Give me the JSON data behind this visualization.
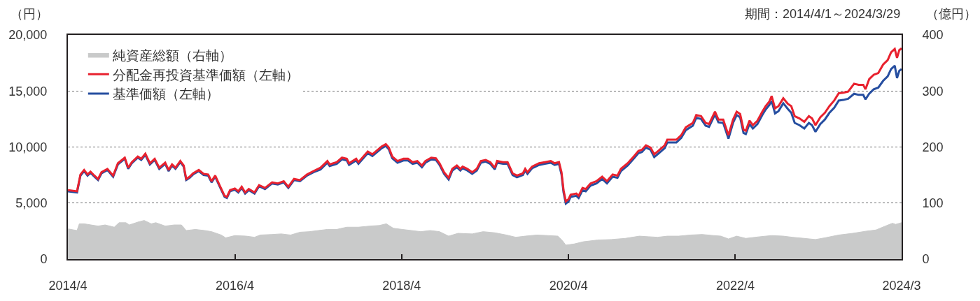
{
  "chart_data": {
    "type": "line",
    "ylabel": "（円）",
    "y2label": "（億円）",
    "annotations": [
      "期間：2014/4/1～2024/3/29"
    ],
    "xlim": [
      "2014-04-01",
      "2024-03-29"
    ],
    "xticks": [
      {
        "value": "2014-04-01",
        "label": "2014/4"
      },
      {
        "value": "2016-04-01",
        "label": "2016/4"
      },
      {
        "value": "2018-04-01",
        "label": "2018/4"
      },
      {
        "value": "2020-04-01",
        "label": "2020/4"
      },
      {
        "value": "2022-04-01",
        "label": "2022/4"
      },
      {
        "value": "2024-03-29",
        "label": "2024/3"
      }
    ],
    "ylim": [
      0,
      20000
    ],
    "yticks": [
      0,
      {
        "value": 5000,
        "label": "5,000"
      },
      {
        "value": 10000,
        "label": "10,000"
      },
      {
        "value": 15000,
        "label": "15,000"
      },
      {
        "value": 20000,
        "label": "20,000"
      }
    ],
    "y2lim": [
      0,
      400
    ],
    "y2ticks": [
      0,
      100,
      200,
      300,
      400
    ],
    "grid": "y",
    "legend": "top left",
    "x": [
      "2014-04-01",
      "2014-05-11",
      "2014-05-26",
      "2014-06-11",
      "2014-06-26",
      "2014-07-09",
      "2014-07-26",
      "2014-08-11",
      "2014-08-26",
      "2014-09-21",
      "2014-10-16",
      "2014-11-06",
      "2014-12-06",
      "2014-12-21",
      "2015-01-06",
      "2015-02-01",
      "2015-02-16",
      "2015-03-06",
      "2015-03-26",
      "2015-04-16",
      "2015-05-06",
      "2015-06-01",
      "2015-06-16",
      "2015-07-01",
      "2015-07-16",
      "2015-08-06",
      "2015-08-21",
      "2015-09-01",
      "2015-09-16",
      "2015-10-01",
      "2015-10-26",
      "2015-11-16",
      "2015-12-06",
      "2015-12-21",
      "2016-01-06",
      "2016-01-26",
      "2016-02-16",
      "2016-02-26",
      "2016-03-11",
      "2016-04-01",
      "2016-04-16",
      "2016-05-01",
      "2016-05-16",
      "2016-06-01",
      "2016-06-26",
      "2016-07-16",
      "2016-08-11",
      "2016-09-11",
      "2016-10-06",
      "2016-11-01",
      "2016-11-21",
      "2016-12-16",
      "2017-01-11",
      "2017-02-11",
      "2017-03-11",
      "2017-04-11",
      "2017-05-11",
      "2017-05-21",
      "2017-06-21",
      "2017-07-14",
      "2017-08-04",
      "2017-08-14",
      "2017-09-14",
      "2017-09-24",
      "2017-11-04",
      "2017-11-24",
      "2017-12-09",
      "2018-01-04",
      "2018-01-22",
      "2018-02-04",
      "2018-02-19",
      "2018-03-14",
      "2018-04-09",
      "2018-04-29",
      "2018-05-19",
      "2018-06-09",
      "2018-06-29",
      "2018-07-14",
      "2018-08-09",
      "2018-08-29",
      "2018-09-14",
      "2018-10-04",
      "2018-10-24",
      "2018-11-09",
      "2018-11-29",
      "2018-12-14",
      "2018-12-24",
      "2019-01-14",
      "2019-02-04",
      "2019-02-24",
      "2019-03-14",
      "2019-04-04",
      "2019-04-24",
      "2019-05-14",
      "2019-05-24",
      "2019-06-19",
      "2019-07-09",
      "2019-07-31",
      "2019-08-19",
      "2019-09-14",
      "2019-09-24",
      "2019-10-04",
      "2019-10-24",
      "2019-11-24",
      "2019-12-19",
      "2020-01-14",
      "2020-01-31",
      "2020-02-19",
      "2020-03-01",
      "2020-03-10",
      "2020-03-20",
      "2020-04-01",
      "2020-04-10",
      "2020-05-05",
      "2020-05-15",
      "2020-06-01",
      "2020-06-15",
      "2020-07-06",
      "2020-08-01",
      "2020-08-26",
      "2020-09-16",
      "2020-10-11",
      "2020-11-01",
      "2020-11-16",
      "2020-12-16",
      "2021-01-11",
      "2021-02-01",
      "2021-02-16",
      "2021-03-06",
      "2021-03-26",
      "2021-04-11",
      "2021-04-26",
      "2021-05-27",
      "2021-06-07",
      "2021-07-17",
      "2021-08-07",
      "2021-08-27",
      "2021-09-27",
      "2021-10-12",
      "2021-11-02",
      "2021-11-22",
      "2021-12-07",
      "2022-01-02",
      "2022-01-17",
      "2022-02-07",
      "2022-03-02",
      "2022-03-22",
      "2022-04-07",
      "2022-04-22",
      "2022-05-07",
      "2022-05-17",
      "2022-06-02",
      "2022-06-17",
      "2022-07-07",
      "2022-07-28",
      "2022-08-12",
      "2022-08-28",
      "2022-09-07",
      "2022-09-22",
      "2022-10-07",
      "2022-10-28",
      "2022-11-17",
      "2022-12-02",
      "2022-12-17",
      "2023-01-07",
      "2023-01-28",
      "2023-02-17",
      "2023-03-03",
      "2023-03-18",
      "2023-04-08",
      "2023-04-28",
      "2023-05-18",
      "2023-06-08",
      "2023-06-28",
      "2023-07-18",
      "2023-08-08",
      "2023-09-03",
      "2023-09-23",
      "2023-10-13",
      "2023-10-23",
      "2023-11-08",
      "2023-11-28",
      "2023-12-18",
      "2024-01-08",
      "2024-01-28",
      "2024-02-12",
      "2024-02-28",
      "2024-03-09",
      "2024-03-19",
      "2024-03-29"
    ],
    "series": [
      {
        "name": "純資産総額（右軸）",
        "type": "area",
        "axis": "y2",
        "color": "#c9caca",
        "x": [
          "2014-04-01",
          "2014-05-11",
          "2014-05-21",
          "2014-06-11",
          "2014-07-11",
          "2014-08-11",
          "2014-09-11",
          "2014-10-21",
          "2014-11-11",
          "2014-12-11",
          "2014-12-26",
          "2015-02-01",
          "2015-03-01",
          "2015-04-01",
          "2015-04-21",
          "2015-06-01",
          "2015-07-11",
          "2015-08-11",
          "2015-09-01",
          "2015-10-11",
          "2015-11-21",
          "2015-12-21",
          "2016-02-01",
          "2016-02-21",
          "2016-04-01",
          "2016-05-21",
          "2016-06-26",
          "2016-07-21",
          "2016-09-11",
          "2016-10-21",
          "2016-12-01",
          "2017-01-11",
          "2017-02-21",
          "2017-04-01",
          "2017-05-11",
          "2017-06-21",
          "2017-08-04",
          "2017-09-24",
          "2017-11-14",
          "2017-12-24",
          "2018-01-24",
          "2018-02-24",
          "2018-04-04",
          "2018-05-14",
          "2018-06-24",
          "2018-08-04",
          "2018-09-14",
          "2018-10-24",
          "2018-12-04",
          "2019-02-04",
          "2019-03-24",
          "2019-05-14",
          "2019-07-04",
          "2019-08-14",
          "2019-09-24",
          "2019-11-14",
          "2020-01-04",
          "2020-02-14",
          "2020-03-05",
          "2020-03-20",
          "2020-04-25",
          "2020-06-05",
          "2020-08-05",
          "2020-10-05",
          "2020-12-05",
          "2021-02-05",
          "2021-03-16",
          "2021-04-26",
          "2021-06-07",
          "2021-07-27",
          "2021-09-17",
          "2021-11-07",
          "2021-12-28",
          "2022-01-28",
          "2022-03-02",
          "2022-04-07",
          "2022-05-17",
          "2022-07-18",
          "2022-09-07",
          "2022-10-28",
          "2022-12-07",
          "2023-01-28",
          "2023-03-18",
          "2023-04-28",
          "2023-06-28",
          "2023-08-28",
          "2023-10-28",
          "2023-12-08",
          "2024-01-18",
          "2024-02-18",
          "2024-03-03",
          "2024-03-29"
        ],
        "values": [
          54,
          51,
          63,
          63,
          61,
          59,
          61,
          57,
          65,
          65,
          61,
          66,
          69,
          63,
          65,
          59,
          61,
          61,
          51,
          53,
          51,
          49,
          43,
          38,
          42,
          41,
          39,
          43,
          44,
          45,
          43,
          48,
          49,
          51,
          53,
          53,
          57,
          57,
          59,
          60,
          63,
          55,
          53,
          51,
          49,
          51,
          49,
          41,
          46,
          45,
          49,
          47,
          43,
          39,
          41,
          43,
          42,
          41,
          33,
          25,
          27,
          31,
          34,
          35,
          37,
          41,
          40,
          39,
          41,
          41,
          43,
          44,
          42,
          41,
          36,
          41,
          37,
          40,
          42,
          41,
          39,
          37,
          35,
          38,
          43,
          46,
          50,
          52,
          59,
          64,
          62,
          65
        ]
      },
      {
        "name": "分配金再投資基準価額（左軸）",
        "color": "#e8212e",
        "values": [
          6150,
          6050,
          7550,
          7950,
          7550,
          7800,
          7450,
          7150,
          7750,
          8050,
          7450,
          8550,
          9050,
          8150,
          8650,
          9150,
          8950,
          9400,
          8550,
          8950,
          8150,
          8600,
          7950,
          8450,
          8150,
          8750,
          8350,
          7150,
          7350,
          7650,
          7950,
          7600,
          7550,
          6950,
          7450,
          6550,
          5650,
          5550,
          6150,
          6300,
          6050,
          6450,
          5950,
          6250,
          5950,
          6600,
          6350,
          6850,
          6750,
          6950,
          6450,
          7150,
          7050,
          7550,
          7850,
          8150,
          8750,
          8450,
          8650,
          9050,
          8950,
          8550,
          8950,
          8650,
          9600,
          9350,
          9600,
          10050,
          10250,
          9950,
          9150,
          8750,
          8950,
          8950,
          8650,
          8750,
          8350,
          8750,
          9050,
          9000,
          8550,
          7750,
          7250,
          8050,
          8350,
          8050,
          8250,
          8050,
          7750,
          8050,
          8750,
          8850,
          8650,
          8150,
          8750,
          8650,
          8650,
          7650,
          7450,
          7650,
          8050,
          7750,
          8250,
          8550,
          8650,
          8750,
          8550,
          8650,
          7750,
          6150,
          5150,
          5350,
          5750,
          5850,
          5650,
          6350,
          6250,
          6750,
          6950,
          7350,
          6950,
          7550,
          7450,
          8050,
          8550,
          9150,
          9650,
          9750,
          10150,
          9950,
          9350,
          9600,
          10150,
          10650,
          10650,
          11050,
          11750,
          12150,
          12850,
          12750,
          12150,
          12050,
          13150,
          12450,
          12450,
          11050,
          12450,
          13150,
          12950,
          11550,
          11450,
          12350,
          11950,
          12350,
          13150,
          13650,
          14050,
          14550,
          13450,
          13650,
          14350,
          13850,
          13650,
          12750,
          12550,
          12250,
          12750,
          12550,
          11950,
          12650,
          13050,
          13650,
          14150,
          14800,
          14850,
          14950,
          15650,
          15550,
          15550,
          15150,
          16050,
          16450,
          16600,
          17350,
          17750,
          18450,
          18750,
          17950,
          18650,
          18800
        ]
      },
      {
        "name": "基準価額（左軸）",
        "color": "#264ea0",
        "values": [
          6050,
          5950,
          7450,
          7850,
          7450,
          7700,
          7350,
          7050,
          7650,
          7950,
          7350,
          8450,
          8950,
          8050,
          8550,
          9050,
          8850,
          9300,
          8450,
          8850,
          8050,
          8500,
          7850,
          8350,
          8050,
          8650,
          8250,
          7050,
          7250,
          7550,
          7850,
          7500,
          7450,
          6850,
          7350,
          6450,
          5550,
          5450,
          6050,
          6200,
          5950,
          6350,
          5850,
          6150,
          5850,
          6500,
          6250,
          6750,
          6650,
          6850,
          6350,
          7050,
          6950,
          7450,
          7750,
          8000,
          8600,
          8300,
          8500,
          8900,
          8800,
          8400,
          8800,
          8500,
          9450,
          9200,
          9450,
          9900,
          10100,
          9800,
          9000,
          8600,
          8800,
          8800,
          8500,
          8600,
          8200,
          8600,
          8900,
          8850,
          8400,
          7600,
          7100,
          7900,
          8200,
          7900,
          8100,
          7900,
          7600,
          7900,
          8600,
          8700,
          8500,
          8000,
          8600,
          8500,
          8500,
          7500,
          7300,
          7500,
          7900,
          7600,
          8100,
          8400,
          8500,
          8600,
          8400,
          8500,
          7550,
          5950,
          4950,
          5150,
          5550,
          5650,
          5450,
          6150,
          6050,
          6550,
          6750,
          7150,
          6750,
          7350,
          7250,
          7850,
          8350,
          8950,
          9450,
          9550,
          9950,
          9750,
          9100,
          9350,
          9900,
          10400,
          10400,
          10800,
          11500,
          11900,
          12600,
          12500,
          11900,
          11800,
          12900,
          12200,
          12150,
          10750,
          12150,
          12850,
          12650,
          11250,
          11150,
          12050,
          11650,
          12050,
          12850,
          13350,
          13750,
          14100,
          13000,
          13200,
          13900,
          13400,
          13050,
          12150,
          11950,
          11650,
          12150,
          11950,
          11350,
          12050,
          12450,
          13050,
          13500,
          14150,
          14200,
          14300,
          14750,
          14650,
          14650,
          14250,
          14750,
          15150,
          15300,
          15900,
          16300,
          16950,
          17250,
          16150,
          16800,
          16950
        ]
      }
    ]
  }
}
